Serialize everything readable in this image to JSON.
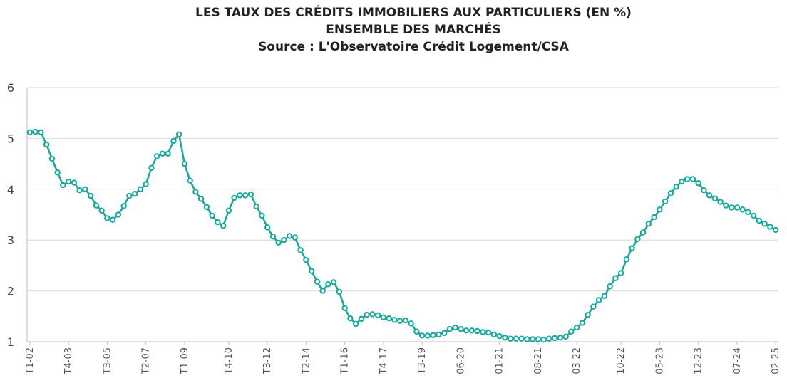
{
  "chart_data": {
    "type": "line",
    "title": "LES TAUX DES CRÉDITS IMMOBILIERS AUX PARTICULIERS (EN %)",
    "subtitle": "ENSEMBLE DES MARCHÉS",
    "source": "Source : L'Observatoire Crédit Logement/CSA",
    "xlabel": "",
    "ylabel": "",
    "ylim": [
      1,
      6
    ],
    "yticks": [
      "1",
      "2",
      "3",
      "4",
      "5",
      "6"
    ],
    "grid": true,
    "legend": "none",
    "line_color": "#17a89c",
    "x_tick_labels": [
      "T1-02",
      "T4-03",
      "T3-05",
      "T2-07",
      "T1-09",
      "T4-10",
      "T3-12",
      "T2-14",
      "T1-16",
      "T4-17",
      "T3-19",
      "06-20",
      "01-21",
      "08-21",
      "03-22",
      "10-22",
      "05-23",
      "12-23",
      "07-24",
      "02-25"
    ],
    "series": [
      {
        "values": [
          5.12,
          5.13,
          5.12,
          4.88,
          4.6,
          4.33,
          4.08,
          4.15,
          4.13,
          3.98,
          4.0,
          3.87,
          3.68,
          3.58,
          3.43,
          3.4,
          3.5,
          3.67,
          3.87,
          3.91,
          4.0,
          4.1,
          4.42,
          4.65,
          4.7,
          4.7,
          4.95,
          5.08,
          4.5,
          4.17,
          3.95,
          3.81,
          3.65,
          3.48,
          3.35,
          3.28,
          3.58,
          3.83,
          3.88,
          3.88,
          3.9,
          3.66,
          3.48,
          3.25,
          3.07,
          2.95,
          3.0,
          3.08,
          3.05,
          2.8,
          2.61,
          2.39,
          2.18,
          2.0,
          2.13,
          2.17,
          1.98,
          1.66,
          1.46,
          1.35,
          1.45,
          1.53,
          1.54,
          1.52,
          1.48,
          1.46,
          1.43,
          1.41,
          1.42,
          1.36,
          1.2,
          1.12,
          1.12,
          1.13,
          1.14,
          1.17,
          1.25,
          1.28,
          1.25,
          1.22,
          1.22,
          1.21,
          1.19,
          1.18,
          1.14,
          1.11,
          1.08,
          1.06,
          1.06,
          1.06,
          1.05,
          1.05,
          1.05,
          1.04,
          1.06,
          1.07,
          1.08,
          1.1,
          1.2,
          1.28,
          1.37,
          1.53,
          1.69,
          1.82,
          1.9,
          2.09,
          2.25,
          2.35,
          2.62,
          2.84,
          3.02,
          3.15,
          3.32,
          3.45,
          3.6,
          3.76,
          3.92,
          4.05,
          4.15,
          4.2,
          4.2,
          4.12,
          3.98,
          3.88,
          3.82,
          3.75,
          3.68,
          3.64,
          3.64,
          3.6,
          3.55,
          3.48,
          3.38,
          3.32,
          3.26,
          3.2
        ]
      }
    ]
  }
}
